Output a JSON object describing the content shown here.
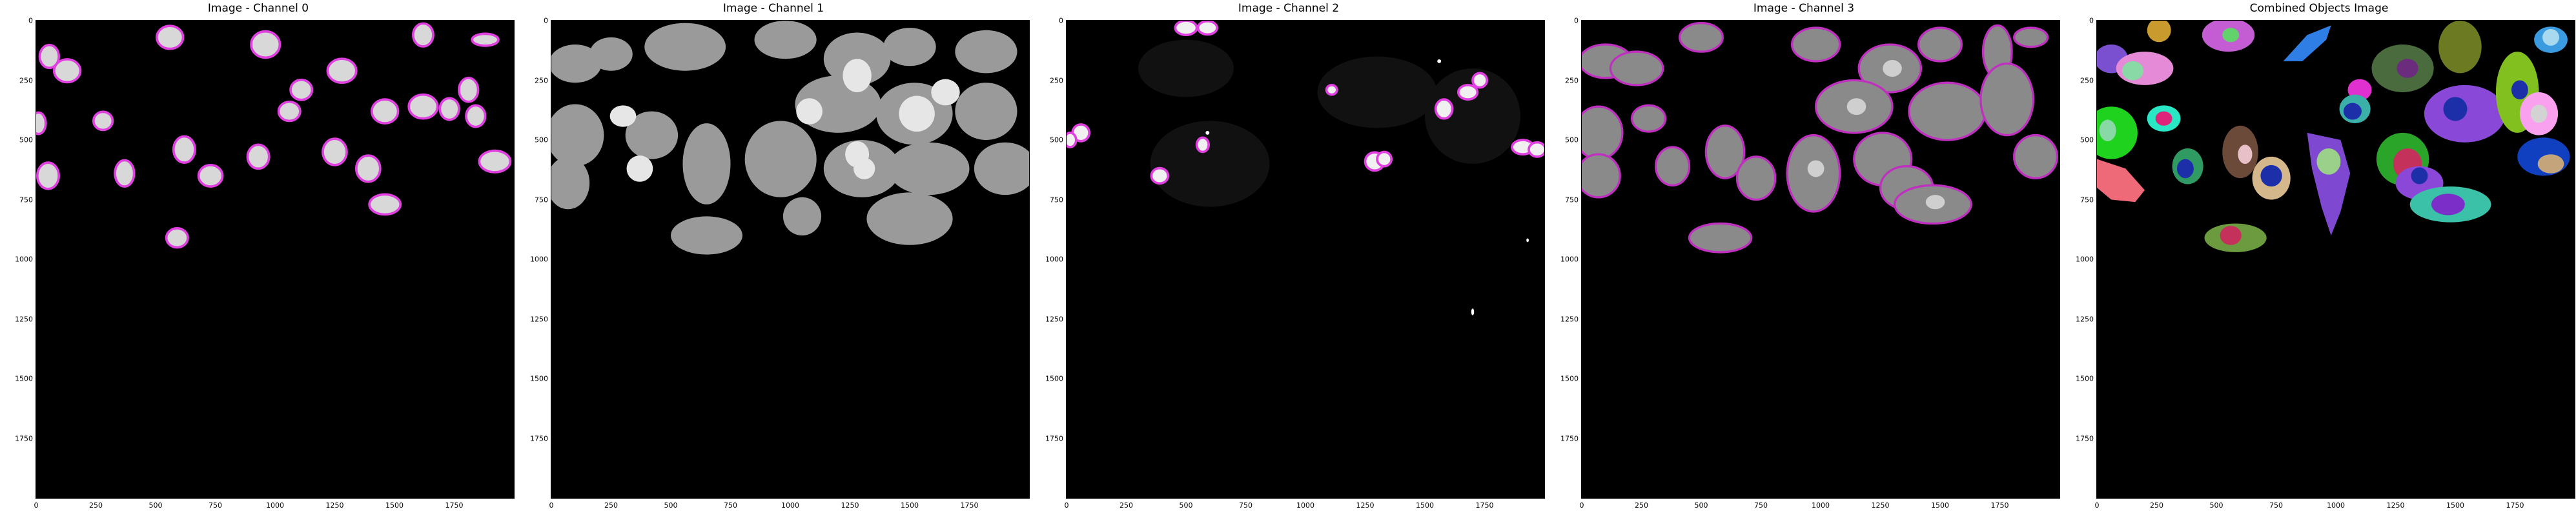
{
  "panels": [
    {
      "title": "Image - Channel 0",
      "kind": "ch0"
    },
    {
      "title": "Image - Channel 1",
      "kind": "ch1"
    },
    {
      "title": "Image - Channel 2",
      "kind": "ch2"
    },
    {
      "title": "Image - Channel 3",
      "kind": "ch3"
    },
    {
      "title": "Combined Objects Image",
      "kind": "combined"
    }
  ],
  "axis": {
    "x_ticks": [
      "0",
      "250",
      "500",
      "750",
      "1000",
      "1250",
      "1500",
      "1750"
    ],
    "y_ticks": [
      "0",
      "250",
      "500",
      "750",
      "1000",
      "1250",
      "1500",
      "1750"
    ],
    "tick_values": [
      0,
      250,
      500,
      750,
      1000,
      1250,
      1500,
      1750
    ],
    "max": 2000
  },
  "colors": {
    "background": "#ffffff",
    "image_bg": "#000000",
    "outline": "#e040e0",
    "nucleus": "#dcdcdc",
    "cytoplasm": "#bdbdbd"
  }
}
